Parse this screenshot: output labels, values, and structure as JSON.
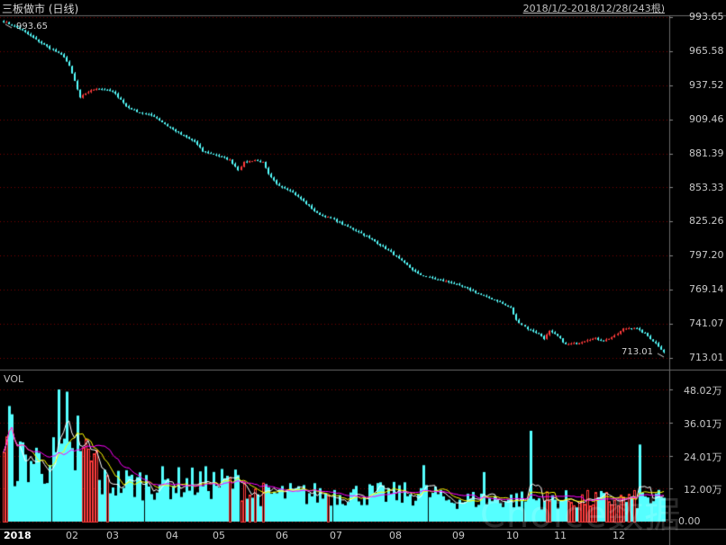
{
  "header": {
    "title": "三板做市 (日线)",
    "range": "2018/1/2-2018/12/28(243根)"
  },
  "volume_panel": {
    "title": "VOL"
  },
  "watermark": "Choice数据",
  "colors": {
    "background": "#000000",
    "up": "#ff3b3b",
    "down": "#55ffff",
    "ma1": "#ffffff",
    "ma2": "#ffff00",
    "ma3": "#ff00ff",
    "grid": "#7a0000"
  },
  "chart_data": [
    {
      "type": "candlestick",
      "title": "三板做市 (日线)",
      "y_ticks": [
        "993.65",
        "965.58",
        "937.52",
        "909.46",
        "881.39",
        "853.33",
        "825.26",
        "797.20",
        "769.14",
        "741.07",
        "713.01"
      ],
      "ylim": [
        713.01,
        993.65
      ],
      "x_ticks": [
        "2018",
        "02",
        "03",
        "04",
        "05",
        "06",
        "07",
        "08",
        "09",
        "10",
        "11",
        "12"
      ],
      "annotations": {
        "high": "993.65",
        "low": "713.01"
      },
      "close_path": [
        [
          0,
          990
        ],
        [
          6,
          984
        ],
        [
          12,
          975
        ],
        [
          17,
          968
        ],
        [
          22,
          961
        ],
        [
          24,
          953
        ],
        [
          26,
          941
        ],
        [
          28,
          927
        ],
        [
          30,
          931
        ],
        [
          32,
          933
        ],
        [
          34,
          935
        ],
        [
          37,
          934
        ],
        [
          40,
          932
        ],
        [
          43,
          926
        ],
        [
          45,
          920
        ],
        [
          50,
          915
        ],
        [
          55,
          912
        ],
        [
          60,
          904
        ],
        [
          65,
          897
        ],
        [
          70,
          891
        ],
        [
          73,
          883
        ],
        [
          78,
          880
        ],
        [
          83,
          876
        ],
        [
          86,
          868
        ],
        [
          88,
          874
        ],
        [
          92,
          876
        ],
        [
          95,
          874
        ],
        [
          97,
          864
        ],
        [
          100,
          856
        ],
        [
          105,
          851
        ],
        [
          110,
          842
        ],
        [
          115,
          832
        ],
        [
          120,
          828
        ],
        [
          125,
          822
        ],
        [
          130,
          817
        ],
        [
          136,
          809
        ],
        [
          142,
          800
        ],
        [
          147,
          791
        ],
        [
          152,
          782
        ],
        [
          158,
          778
        ],
        [
          164,
          775
        ],
        [
          170,
          770
        ],
        [
          176,
          764
        ],
        [
          181,
          760
        ],
        [
          186,
          754
        ],
        [
          188,
          744
        ],
        [
          192,
          737
        ],
        [
          196,
          733
        ],
        [
          198,
          729
        ],
        [
          200,
          735
        ],
        [
          203,
          731
        ],
        [
          206,
          724
        ],
        [
          210,
          725
        ],
        [
          214,
          728
        ],
        [
          217,
          729
        ],
        [
          220,
          727
        ],
        [
          224,
          731
        ],
        [
          227,
          737
        ],
        [
          231,
          738
        ],
        [
          235,
          733
        ],
        [
          239,
          725
        ],
        [
          242,
          718
        ]
      ]
    },
    {
      "type": "bar",
      "title": "VOL",
      "unit": "万",
      "y_ticks": [
        "48.02万",
        "36.01万",
        "24.01万",
        "12.00万",
        "0.00"
      ],
      "ylim": [
        0,
        48.02
      ],
      "typical_range": [
        5,
        28
      ],
      "spikes": [
        {
          "x": 20,
          "value": 48.0
        },
        {
          "x": 23,
          "value": 47.2
        },
        {
          "x": 27,
          "value": 38.5
        },
        {
          "x": 2,
          "value": 42.0
        },
        {
          "x": 3,
          "value": 39.0
        },
        {
          "x": 30,
          "value": 30.0
        },
        {
          "x": 193,
          "value": 33.0
        },
        {
          "x": 233,
          "value": 28.0
        },
        {
          "x": 154,
          "value": 20.5
        },
        {
          "x": 176,
          "value": 18.0
        }
      ]
    }
  ]
}
